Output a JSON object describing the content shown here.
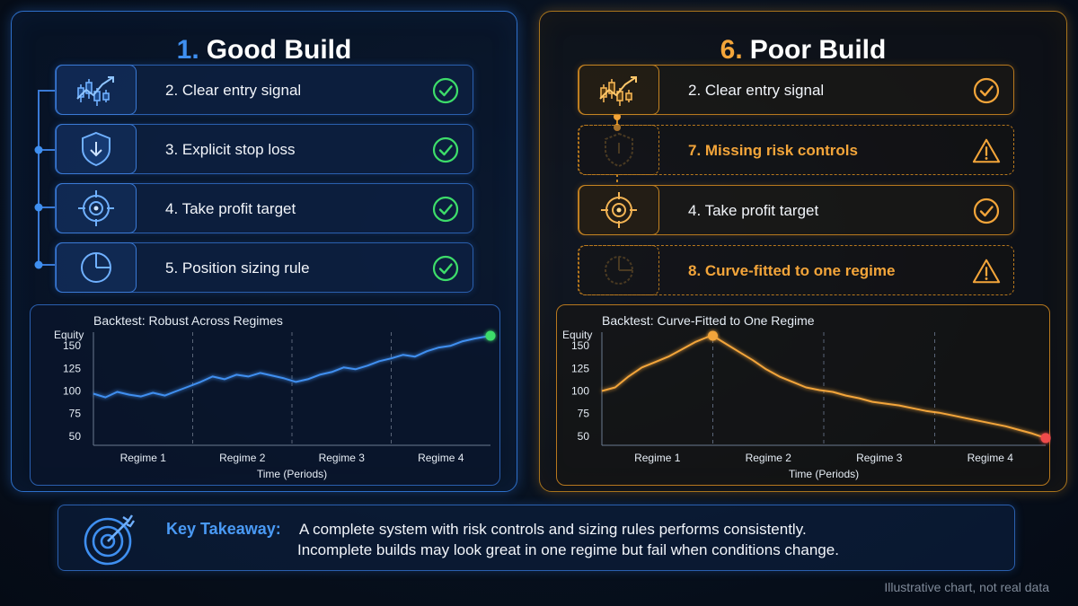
{
  "good": {
    "number": "1.",
    "title": "Good Build",
    "items": [
      {
        "label": "2.  Clear entry signal",
        "icon": "candlestick-chart-icon",
        "status": "check"
      },
      {
        "label": "3.  Explicit stop loss",
        "icon": "shield-down-arrow-icon",
        "status": "check"
      },
      {
        "label": "4.  Take profit target",
        "icon": "crosshair-target-icon",
        "status": "check"
      },
      {
        "label": "5.  Position sizing rule",
        "icon": "pie-chart-icon",
        "status": "check"
      }
    ],
    "accent": "#3f8ff0",
    "check_color": "#3ddc6a"
  },
  "poor": {
    "number": "6.",
    "title": "Poor Build",
    "items": [
      {
        "label": "2.  Clear entry signal",
        "icon": "candlestick-chart-icon",
        "status": "check"
      },
      {
        "label": "7.  Missing risk controls",
        "icon": "faded-shield-icon",
        "status": "warning"
      },
      {
        "label": "4.  Take profit target",
        "icon": "crosshair-target-icon",
        "status": "check"
      },
      {
        "label": "8.  Curve-fitted to one regime",
        "icon": "faded-pie-chart-icon",
        "status": "warning"
      }
    ],
    "accent": "#f3a53a"
  },
  "chart_data": [
    {
      "type": "line",
      "title": "Backtest: Robust Across Regimes",
      "ylabel": "Equity",
      "xlabel": "Time (Periods)",
      "categories": [
        "Regime 1",
        "Regime 2",
        "Regime 3",
        "Regime 4"
      ],
      "yticks": [
        50,
        75,
        100,
        125,
        150
      ],
      "ylim": [
        40,
        165
      ],
      "xlim": [
        0,
        100
      ],
      "grid": "vertical regime dividers (dashed)",
      "line_color": "#3f8ff0",
      "end_marker_color": "#3ddc6a",
      "series": [
        {
          "x": [
            0,
            3,
            6,
            9,
            12,
            15,
            18,
            21,
            24,
            27,
            30,
            33,
            36,
            39,
            42,
            45,
            48,
            51,
            54,
            57,
            60,
            63,
            66,
            69,
            72,
            75,
            78,
            81,
            84,
            87,
            90,
            93,
            96,
            100
          ],
          "values": [
            97,
            93,
            99,
            96,
            94,
            98,
            95,
            100,
            105,
            110,
            116,
            113,
            118,
            116,
            120,
            117,
            114,
            110,
            113,
            118,
            121,
            126,
            124,
            128,
            133,
            136,
            140,
            138,
            144,
            148,
            150,
            155,
            158,
            161
          ]
        }
      ]
    },
    {
      "type": "line",
      "title": "Backtest: Curve-Fitted to One Regime",
      "ylabel": "Equity",
      "xlabel": "Time (Periods)",
      "categories": [
        "Regime 1",
        "Regime 2",
        "Regime 3",
        "Regime 4"
      ],
      "yticks": [
        50,
        75,
        100,
        125,
        150
      ],
      "ylim": [
        40,
        165
      ],
      "xlim": [
        0,
        100
      ],
      "grid": "vertical regime dividers (dashed)",
      "line_color": "#f3a53a",
      "peak_marker_color": "#f3a53a",
      "end_marker_color": "#ef4b4b",
      "series": [
        {
          "x": [
            0,
            3,
            6,
            9,
            12,
            15,
            18,
            21,
            24,
            25,
            28,
            31,
            34,
            37,
            40,
            43,
            46,
            49,
            52,
            55,
            58,
            61,
            64,
            67,
            70,
            73,
            76,
            79,
            82,
            85,
            88,
            91,
            94,
            97,
            100
          ],
          "values": [
            100,
            104,
            116,
            126,
            132,
            138,
            146,
            154,
            160,
            161,
            152,
            143,
            134,
            124,
            116,
            110,
            104,
            101,
            99,
            95,
            92,
            88,
            86,
            84,
            81,
            78,
            76,
            73,
            70,
            67,
            64,
            61,
            57,
            53,
            48
          ]
        }
      ]
    }
  ],
  "takeaway": {
    "label": "Key Takeaway:",
    "line1": "A complete system with risk controls and sizing rules performs consistently.",
    "line2": "Incomplete builds may look great in one regime but fail when conditions change.",
    "icon": "bullseye-arrow-icon"
  },
  "footnote": "Illustrative chart, not real data"
}
